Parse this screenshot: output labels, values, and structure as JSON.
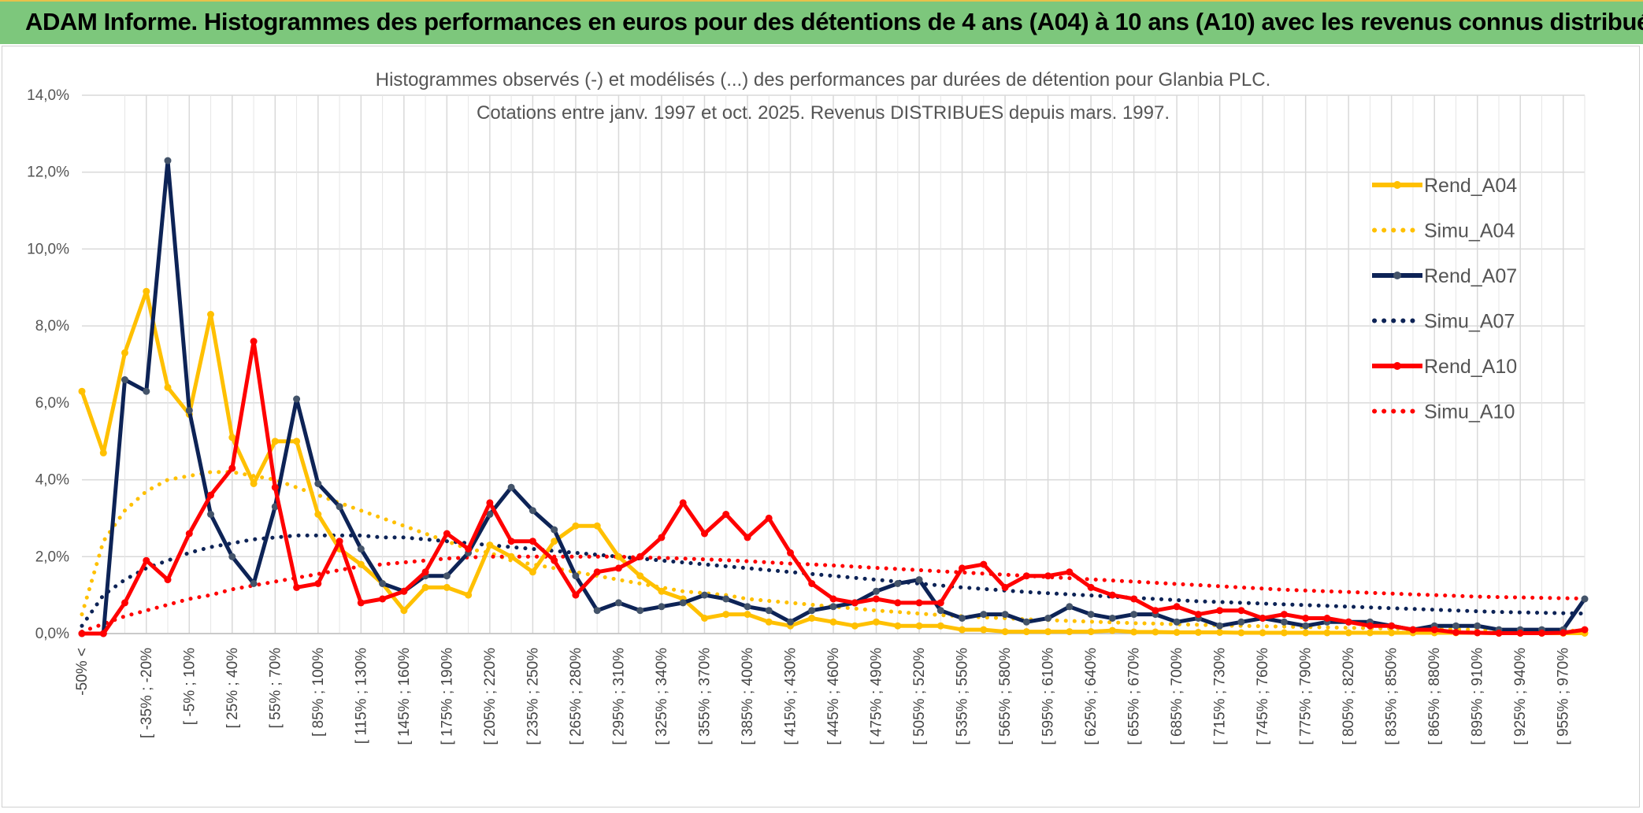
{
  "banner": {
    "title": "ADAM Informe. Histogrammes des performances en euros pour des détentions de 4 ans (A04) à 10 ans (A10) avec les revenus connus distribués"
  },
  "chart_data": {
    "type": "line",
    "title": "Histogrammes observés (-) et modélisés (...) des performances par durées de détention pour Glanbia PLC.",
    "subtitle": "Cotations entre janv. 1997 et oct. 2025. Revenus DISTRIBUES depuis mars. 1997.",
    "ylim": [
      0,
      14
    ],
    "yticks": [
      "0,0%",
      "2,0%",
      "4,0%",
      "6,0%",
      "8,0%",
      "10,0%",
      "12,0%",
      "14,0%"
    ],
    "grid": true,
    "legend_position": "right",
    "x_labels": [
      "-50% <",
      "[ -35% ; -20%",
      "[ -5% ; 10%",
      "[ 25% ; 40%",
      "[ 55% ; 70%",
      "[ 85% ; 100%",
      "[ 115% ; 130%",
      "[ 145% ; 160%",
      "[ 175% ; 190%",
      "[ 205% ; 220%",
      "[ 235% ; 250%",
      "[ 265% ; 280%",
      "[ 295% ; 310%",
      "[ 325% ; 340%",
      "[ 355% ; 370%",
      "[ 385% ; 400%",
      "[ 415% ; 430%",
      "[ 445% ; 460%",
      "[ 475% ; 490%",
      "[ 505% ; 520%",
      "[ 535% ; 550%",
      "[ 565% ; 580%",
      "[ 595% ; 610%",
      "[ 625% ; 640%",
      "[ 655% ; 670%",
      "[ 685% ; 700%",
      "[ 715% ; 730%",
      "[ 745% ; 760%",
      "[ 775% ; 790%",
      "[ 805% ; 820%",
      "[ 835% ; 850%",
      "[ 865% ; 880%",
      "[ 895% ; 910%",
      "[ 925% ; 940%",
      "[ 955% ; 970%"
    ],
    "n_points": 71,
    "series": [
      {
        "name": "Rend_A04",
        "color": "#ffc000",
        "style": "solid",
        "values": [
          6.3,
          4.7,
          7.3,
          8.9,
          6.4,
          5.7,
          8.3,
          5.1,
          3.9,
          5.0,
          5.0,
          3.1,
          2.2,
          1.8,
          1.3,
          0.6,
          1.2,
          1.2,
          1.0,
          2.3,
          2.0,
          1.6,
          2.4,
          2.8,
          2.8,
          2.0,
          1.5,
          1.1,
          0.9,
          0.4,
          0.5,
          0.5,
          0.3,
          0.2,
          0.4,
          0.3,
          0.2,
          0.3,
          0.2,
          0.2,
          0.2,
          0.1,
          0.1,
          0.05,
          0.05,
          0.05,
          0.05,
          0.05,
          0.08,
          0.04,
          0.04,
          0.03,
          0.03,
          0.03,
          0.02,
          0.02,
          0.02,
          0.02,
          0.02,
          0.02,
          0.02,
          0.02,
          0.02,
          0.02,
          0.02,
          0.02,
          0.01,
          0.01,
          0.01,
          0.01,
          0.01
        ]
      },
      {
        "name": "Simu_A04",
        "color": "#ffc000",
        "style": "dotted",
        "values": [
          0.5,
          2.4,
          3.2,
          3.7,
          4.0,
          4.1,
          4.2,
          4.2,
          4.1,
          4.0,
          3.8,
          3.6,
          3.4,
          3.2,
          3.0,
          2.8,
          2.6,
          2.4,
          2.2,
          2.1,
          1.9,
          1.8,
          1.7,
          1.6,
          1.5,
          1.4,
          1.3,
          1.2,
          1.1,
          1.05,
          1.0,
          0.9,
          0.85,
          0.8,
          0.75,
          0.7,
          0.65,
          0.6,
          0.56,
          0.52,
          0.48,
          0.45,
          0.42,
          0.4,
          0.37,
          0.35,
          0.33,
          0.31,
          0.29,
          0.27,
          0.26,
          0.24,
          0.23,
          0.21,
          0.2,
          0.19,
          0.18,
          0.17,
          0.16,
          0.15,
          0.14,
          0.13,
          0.12,
          0.12,
          0.11,
          0.1,
          0.1,
          0.09,
          0.08,
          0.08,
          0.07
        ]
      },
      {
        "name": "Rend_A07",
        "color": "#0d2356",
        "style": "solid",
        "values": [
          0.0,
          0.0,
          6.6,
          6.3,
          12.3,
          5.8,
          3.1,
          2.0,
          1.3,
          3.3,
          6.1,
          3.9,
          3.3,
          2.2,
          1.3,
          1.1,
          1.5,
          1.5,
          2.1,
          3.1,
          3.8,
          3.2,
          2.7,
          1.5,
          0.6,
          0.8,
          0.6,
          0.7,
          0.8,
          1.0,
          0.9,
          0.7,
          0.6,
          0.3,
          0.6,
          0.7,
          0.8,
          1.1,
          1.3,
          1.4,
          0.6,
          0.4,
          0.5,
          0.5,
          0.3,
          0.4,
          0.7,
          0.5,
          0.4,
          0.5,
          0.5,
          0.3,
          0.4,
          0.2,
          0.3,
          0.4,
          0.3,
          0.2,
          0.3,
          0.3,
          0.3,
          0.2,
          0.1,
          0.2,
          0.2,
          0.2,
          0.1,
          0.1,
          0.1,
          0.1,
          0.9
        ]
      },
      {
        "name": "Simu_A07",
        "color": "#0d2356",
        "style": "dotted",
        "values": [
          0.2,
          1.0,
          1.4,
          1.7,
          1.9,
          2.1,
          2.25,
          2.35,
          2.45,
          2.5,
          2.55,
          2.55,
          2.55,
          2.55,
          2.5,
          2.5,
          2.45,
          2.4,
          2.35,
          2.3,
          2.25,
          2.2,
          2.15,
          2.1,
          2.05,
          2.0,
          1.95,
          1.9,
          1.85,
          1.8,
          1.75,
          1.7,
          1.65,
          1.6,
          1.55,
          1.5,
          1.45,
          1.4,
          1.35,
          1.3,
          1.25,
          1.2,
          1.16,
          1.12,
          1.08,
          1.05,
          1.02,
          0.99,
          0.96,
          0.93,
          0.9,
          0.87,
          0.84,
          0.82,
          0.8,
          0.78,
          0.76,
          0.74,
          0.72,
          0.7,
          0.68,
          0.66,
          0.64,
          0.62,
          0.6,
          0.58,
          0.56,
          0.55,
          0.54,
          0.53,
          0.52
        ]
      },
      {
        "name": "Rend_A10",
        "color": "#ff0000",
        "style": "solid",
        "values": [
          0.0,
          0.0,
          0.8,
          1.9,
          1.4,
          2.6,
          3.6,
          4.3,
          7.6,
          3.8,
          1.2,
          1.3,
          2.4,
          0.8,
          0.9,
          1.1,
          1.6,
          2.6,
          2.2,
          3.4,
          2.4,
          2.4,
          1.9,
          1.0,
          1.6,
          1.7,
          2.0,
          2.5,
          3.4,
          2.6,
          3.1,
          2.5,
          3.0,
          2.1,
          1.3,
          0.9,
          0.8,
          0.9,
          0.8,
          0.8,
          0.8,
          1.7,
          1.8,
          1.2,
          1.5,
          1.5,
          1.6,
          1.2,
          1.0,
          0.9,
          0.6,
          0.7,
          0.5,
          0.6,
          0.6,
          0.4,
          0.5,
          0.4,
          0.4,
          0.3,
          0.2,
          0.2,
          0.1,
          0.1,
          0.03,
          0.02,
          0.01,
          0.01,
          0.01,
          0.02,
          0.1
        ]
      },
      {
        "name": "Simu_A10",
        "color": "#ff0000",
        "style": "dotted",
        "values": [
          0.05,
          0.25,
          0.45,
          0.6,
          0.75,
          0.9,
          1.0,
          1.15,
          1.25,
          1.35,
          1.45,
          1.55,
          1.65,
          1.75,
          1.8,
          1.85,
          1.9,
          1.95,
          1.98,
          2.0,
          2.0,
          2.0,
          2.0,
          2.0,
          2.0,
          2.0,
          1.98,
          1.97,
          1.95,
          1.93,
          1.91,
          1.88,
          1.85,
          1.82,
          1.8,
          1.77,
          1.74,
          1.71,
          1.68,
          1.65,
          1.62,
          1.59,
          1.56,
          1.53,
          1.5,
          1.47,
          1.44,
          1.41,
          1.38,
          1.35,
          1.32,
          1.29,
          1.26,
          1.23,
          1.2,
          1.17,
          1.14,
          1.12,
          1.1,
          1.08,
          1.06,
          1.04,
          1.02,
          1.0,
          0.98,
          0.96,
          0.95,
          0.94,
          0.93,
          0.92,
          0.91
        ]
      }
    ]
  }
}
